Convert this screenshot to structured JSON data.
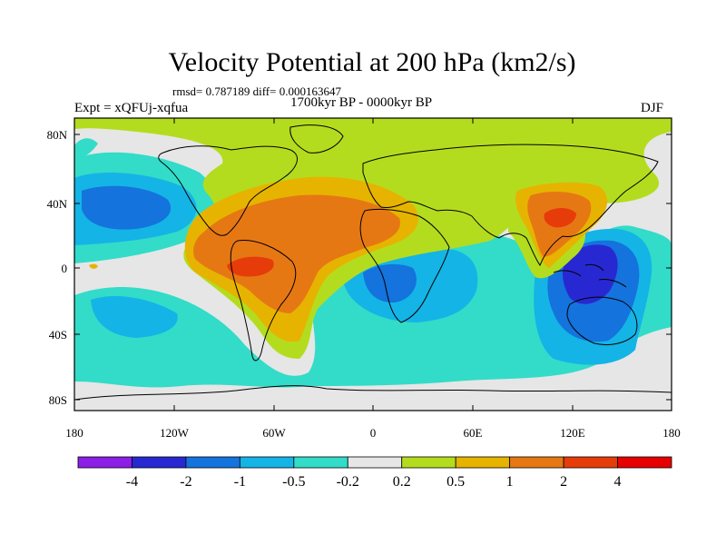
{
  "title": "Velocity Potential at 200 hPa (km2/s)",
  "stats": "rmsd= 0.787189 diff= 0.000163647",
  "experiment": "Expt = xQFUj-xqfua",
  "period": "1700kyr BP - 0000kyr BP",
  "season": "DJF",
  "lat_labels": [
    "80N",
    "40N",
    "0",
    "40S",
    "80S"
  ],
  "lon_labels": [
    "180",
    "120W",
    "60W",
    "0",
    "60E",
    "120E",
    "180"
  ],
  "colorbar": {
    "labels": [
      "-4",
      "-2",
      "-1",
      "-0.5",
      "-0.2",
      "0.2",
      "0.5",
      "1",
      "2",
      "4"
    ],
    "colors": [
      "#8c1ee6",
      "#2828d2",
      "#1473dc",
      "#14b4e6",
      "#32dcc8",
      "#e6e6e6",
      "#b4dc1e",
      "#e6b400",
      "#e67814",
      "#e63c0a",
      "#e60000"
    ]
  },
  "colors": {
    "land_outline": "#000000",
    "c_m4": "#2828d2",
    "c_m2": "#1473dc",
    "c_m1": "#14b4e6",
    "c_m05": "#32dcc8",
    "c_m02": "#e6e6e6",
    "c_02": "#b4dc1e",
    "c_05": "#e6b400",
    "c_1": "#e67814",
    "c_2": "#e63c0a"
  }
}
